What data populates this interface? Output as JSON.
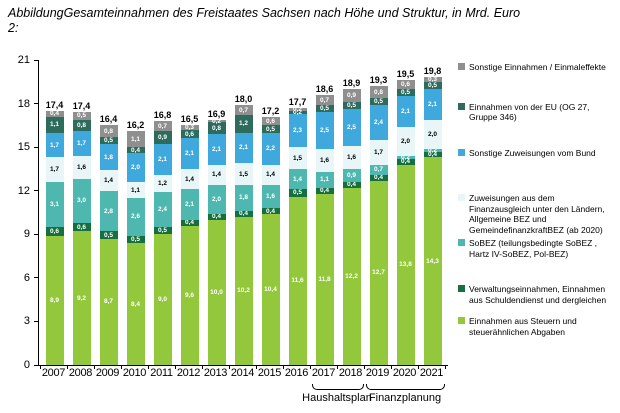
{
  "title": {
    "label": "Abbildung 2:",
    "text": "Gesamteinnahmen des Freistaates Sachsen nach Höhe und Struktur, in Mrd. Euro"
  },
  "chart_data": {
    "type": "bar",
    "stacked": true,
    "unit": "Mrd. Euro",
    "ylim": [
      0,
      21
    ],
    "yticks": [
      "0",
      "3",
      "6",
      "9",
      "12",
      "15",
      "18",
      "21"
    ],
    "grid": false,
    "legend_position": "right",
    "categories": [
      "2007",
      "2008",
      "2009",
      "2010",
      "2011",
      "2012",
      "2013",
      "2014",
      "2015",
      "2016",
      "2017",
      "2018",
      "2019",
      "2020",
      "2021"
    ],
    "totals": [
      "17,4",
      "17,4",
      "16,4",
      "16,2",
      "16,8",
      "16,5",
      "16,9",
      "18,0",
      "17,2",
      "17,7",
      "18,6",
      "18,9",
      "19,3",
      "19,5",
      "19,8"
    ],
    "series": [
      {
        "key": "steuern",
        "name": "Einnahmen aus Steuern und steuerähnlichen Abgaben",
        "color": "#93C83C",
        "text": "#ffffff",
        "values": [
          8.9,
          9.2,
          8.7,
          8.4,
          9.0,
          9.6,
          10.0,
          10.2,
          10.4,
          11.6,
          11.8,
          12.2,
          12.7,
          13.8,
          14.3
        ]
      },
      {
        "key": "verwaltung",
        "name": "Verwaltungseinnahmen, Einnahmen aus Schuldendienst und dergleichen",
        "color": "#166F3F",
        "text": "#ffffff",
        "values": [
          0.6,
          0.6,
          0.5,
          0.5,
          0.5,
          0.4,
          0.4,
          0.4,
          0.4,
          0.5,
          0.4,
          0.4,
          0.4,
          0.4,
          0.4
        ]
      },
      {
        "key": "sobez",
        "name": "SoBEZ (teilungsbedingte SoBEZ, Hartz IV-SoBEZ, Pol-BEZ)",
        "color": "#4EB8B0",
        "text": "#ffffff",
        "values": [
          3.1,
          3.0,
          2.8,
          2.6,
          2.4,
          2.1,
          2.0,
          1.8,
          1.6,
          1.4,
          1.1,
          0.9,
          0.7,
          0.2,
          0.2
        ]
      },
      {
        "key": "finanzausgleich",
        "name": "Zuweisungen aus dem Finanzausgleich unter den Ländern, Allgemeine BEZ und GemeindefinanzkraftBEZ (ab 2020)",
        "color": "#E8F6F8",
        "text": "#000000",
        "values": [
          1.7,
          1.6,
          1.4,
          1.1,
          1.2,
          1.4,
          1.4,
          1.5,
          1.4,
          1.5,
          1.6,
          1.6,
          1.7,
          2.0,
          2.0
        ]
      },
      {
        "key": "bund",
        "name": "Sonstige Zuweisungen vom Bund",
        "color": "#3FA9DE",
        "text": "#ffffff",
        "values": [
          1.7,
          1.7,
          1.8,
          2.0,
          2.1,
          2.1,
          2.1,
          2.1,
          2.2,
          2.3,
          2.5,
          2.5,
          2.4,
          2.1,
          2.1
        ]
      },
      {
        "key": "eu",
        "name": "Einnahmen von der EU (OG 27, Gruppe 346)",
        "color": "#2D6B5C",
        "text": "#ffffff",
        "values": [
          1.1,
          0.8,
          0.5,
          0.4,
          0.9,
          0.6,
          0.8,
          1.2,
          0.5,
          0.2,
          0.5,
          0.5,
          0.5,
          0.5,
          0.5
        ]
      },
      {
        "key": "sonstige",
        "name": "Sonstige Einnahmen / Einmaleffekte",
        "color": "#8F8F8F",
        "text": "#ffffff",
        "values": [
          0.4,
          0.5,
          0.8,
          1.1,
          0.7,
          0.3,
          0.2,
          0.7,
          0.6,
          0.2,
          0.7,
          0.9,
          0.8,
          0.6,
          0.3
        ]
      }
    ],
    "annotations": [
      {
        "label": "Haushaltsplan",
        "applies_to": [
          "2017",
          "2018"
        ]
      },
      {
        "label": "Finanzplanung",
        "applies_to": [
          "2019",
          "2020",
          "2021"
        ]
      }
    ]
  },
  "legend": {
    "items": [
      {
        "label": "Sonstige Einnahmen / Einmaleffekte",
        "color": "#8F8F8F",
        "key": "sonstige"
      },
      {
        "label": "Einnahmen von der EU (OG 27, Gruppe 346)",
        "color": "#2D6B5C",
        "key": "eu"
      },
      {
        "label": "Sonstige Zuweisungen vom Bund",
        "color": "#3FA9DE",
        "key": "bund"
      },
      {
        "label": "Zuweisungen aus dem Finanzausgleich unter den Ländern, Allgemeine BEZ und GemeindefinanzkraftBEZ (ab 2020)",
        "color": "#E8F6F8",
        "key": "finanzausgleich"
      },
      {
        "label": "SoBEZ (teilungsbedingte SoBEZ , Hartz IV-SoBEZ, Pol-BEZ)",
        "color": "#4EB8B0",
        "key": "sobez"
      },
      {
        "label": "Verwaltungseinnahmen, Einnahmen aus Schuldendienst und dergleichen",
        "color": "#166F3F",
        "key": "verwaltung"
      },
      {
        "label": "Einnahmen aus Steuern und steuerähnlichen Abgaben",
        "color": "#93C83C",
        "key": "steuern"
      }
    ]
  }
}
